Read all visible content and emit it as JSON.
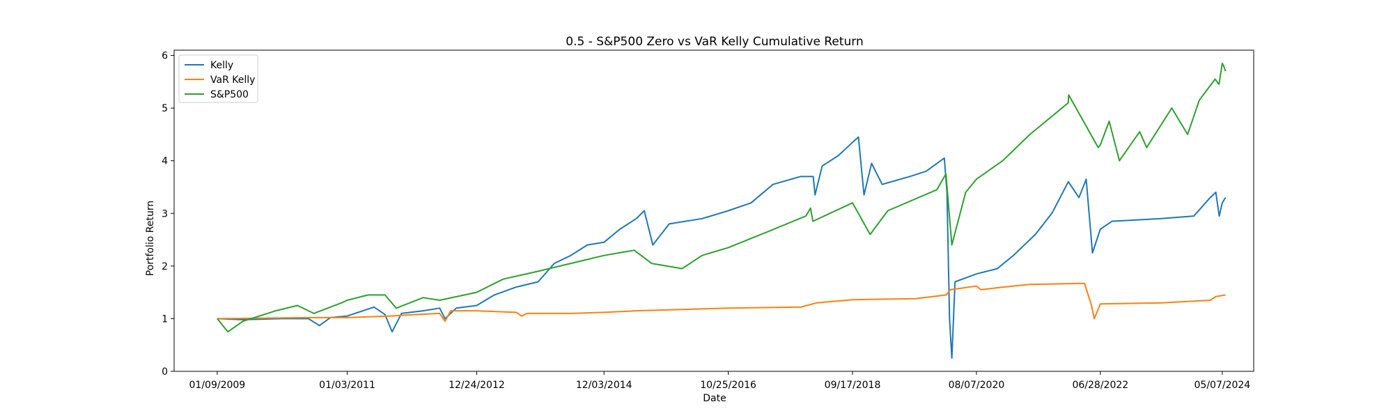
{
  "chart_data": {
    "type": "line",
    "title": "0.5 - S&P500 Zero vs VaR Kelly Cumulative Return",
    "xlabel": "Date",
    "ylabel": "Portfolio Return",
    "xticks": [
      "01/09/2009",
      "01/03/2011",
      "12/24/2012",
      "12/03/2014",
      "10/25/2016",
      "09/17/2018",
      "08/07/2020",
      "06/28/2022",
      "05/07/2024"
    ],
    "yticks": [
      0,
      1,
      2,
      3,
      4,
      5,
      6
    ],
    "xlim": [
      "2008-05-14",
      "2024-10-29"
    ],
    "ylim": [
      0,
      6.1
    ],
    "legend_position": "top-left",
    "grid": false,
    "series": [
      {
        "name": "Kelly",
        "color": "#1f77b4",
        "points": [
          [
            "2009-01-09",
            1.0
          ],
          [
            "2009-06-01",
            0.98
          ],
          [
            "2010-01-01",
            1.0
          ],
          [
            "2010-06-01",
            1.0
          ],
          [
            "2010-08-01",
            0.87
          ],
          [
            "2010-10-01",
            1.02
          ],
          [
            "2011-01-03",
            1.05
          ],
          [
            "2011-04-01",
            1.15
          ],
          [
            "2011-06-01",
            1.22
          ],
          [
            "2011-08-01",
            1.08
          ],
          [
            "2011-09-10",
            0.75
          ],
          [
            "2011-11-01",
            1.1
          ],
          [
            "2012-03-01",
            1.15
          ],
          [
            "2012-06-01",
            1.2
          ],
          [
            "2012-07-01",
            1.0
          ],
          [
            "2012-09-01",
            1.2
          ],
          [
            "2012-12-24",
            1.25
          ],
          [
            "2013-04-01",
            1.45
          ],
          [
            "2013-08-01",
            1.6
          ],
          [
            "2013-12-01",
            1.7
          ],
          [
            "2014-03-01",
            2.05
          ],
          [
            "2014-06-01",
            2.2
          ],
          [
            "2014-09-01",
            2.4
          ],
          [
            "2014-12-03",
            2.45
          ],
          [
            "2015-03-01",
            2.7
          ],
          [
            "2015-06-01",
            2.9
          ],
          [
            "2015-07-15",
            3.05
          ],
          [
            "2015-09-01",
            2.4
          ],
          [
            "2015-12-01",
            2.8
          ],
          [
            "2016-06-01",
            2.9
          ],
          [
            "2016-10-25",
            3.05
          ],
          [
            "2017-03-01",
            3.2
          ],
          [
            "2017-07-01",
            3.55
          ],
          [
            "2017-12-01",
            3.7
          ],
          [
            "2018-02-10",
            3.7
          ],
          [
            "2018-02-20",
            3.35
          ],
          [
            "2018-04-01",
            3.9
          ],
          [
            "2018-07-01",
            4.1
          ],
          [
            "2018-09-17",
            4.35
          ],
          [
            "2018-10-20",
            4.45
          ],
          [
            "2018-11-20",
            3.35
          ],
          [
            "2019-01-01",
            3.95
          ],
          [
            "2019-03-01",
            3.55
          ],
          [
            "2019-08-01",
            3.7
          ],
          [
            "2019-11-01",
            3.8
          ],
          [
            "2020-02-10",
            4.05
          ],
          [
            "2020-02-25",
            3.4
          ],
          [
            "2020-03-10",
            1.0
          ],
          [
            "2020-03-23",
            0.25
          ],
          [
            "2020-04-10",
            1.7
          ],
          [
            "2020-08-07",
            1.85
          ],
          [
            "2020-12-01",
            1.95
          ],
          [
            "2021-03-01",
            2.2
          ],
          [
            "2021-07-01",
            2.6
          ],
          [
            "2021-10-01",
            3.0
          ],
          [
            "2022-01-01",
            3.6
          ],
          [
            "2022-03-01",
            3.3
          ],
          [
            "2022-04-10",
            3.65
          ],
          [
            "2022-05-15",
            2.25
          ],
          [
            "2022-06-28",
            2.7
          ],
          [
            "2022-09-01",
            2.85
          ],
          [
            "2023-06-01",
            2.9
          ],
          [
            "2023-12-01",
            2.95
          ],
          [
            "2024-03-01",
            3.3
          ],
          [
            "2024-04-01",
            3.4
          ],
          [
            "2024-04-20",
            2.95
          ],
          [
            "2024-05-07",
            3.2
          ],
          [
            "2024-05-25",
            3.3
          ]
        ]
      },
      {
        "name": "VaR Kelly",
        "color": "#ff7f0e",
        "points": [
          [
            "2009-01-09",
            1.0
          ],
          [
            "2010-06-01",
            1.02
          ],
          [
            "2011-01-03",
            1.02
          ],
          [
            "2011-09-01",
            1.05
          ],
          [
            "2012-02-01",
            1.08
          ],
          [
            "2012-06-01",
            1.1
          ],
          [
            "2012-07-01",
            0.95
          ],
          [
            "2012-08-01",
            1.15
          ],
          [
            "2012-12-24",
            1.15
          ],
          [
            "2013-08-01",
            1.12
          ],
          [
            "2013-09-01",
            1.05
          ],
          [
            "2013-10-01",
            1.1
          ],
          [
            "2014-06-01",
            1.1
          ],
          [
            "2014-12-03",
            1.12
          ],
          [
            "2015-06-01",
            1.15
          ],
          [
            "2016-10-25",
            1.2
          ],
          [
            "2017-12-01",
            1.22
          ],
          [
            "2018-03-01",
            1.3
          ],
          [
            "2018-09-17",
            1.36
          ],
          [
            "2019-09-01",
            1.38
          ],
          [
            "2020-02-20",
            1.45
          ],
          [
            "2020-03-15",
            1.55
          ],
          [
            "2020-08-07",
            1.62
          ],
          [
            "2020-09-01",
            1.55
          ],
          [
            "2021-01-01",
            1.6
          ],
          [
            "2021-06-01",
            1.65
          ],
          [
            "2022-04-01",
            1.67
          ],
          [
            "2022-05-10",
            1.25
          ],
          [
            "2022-05-25",
            1.0
          ],
          [
            "2022-06-28",
            1.28
          ],
          [
            "2023-06-01",
            1.3
          ],
          [
            "2024-03-01",
            1.35
          ],
          [
            "2024-04-01",
            1.42
          ],
          [
            "2024-05-25",
            1.45
          ]
        ]
      },
      {
        "name": "S&P500",
        "color": "#2ca02c",
        "points": [
          [
            "2009-01-09",
            1.0
          ],
          [
            "2009-03-09",
            0.75
          ],
          [
            "2009-06-01",
            0.95
          ],
          [
            "2009-12-01",
            1.15
          ],
          [
            "2010-04-01",
            1.25
          ],
          [
            "2010-07-01",
            1.1
          ],
          [
            "2010-12-01",
            1.3
          ],
          [
            "2011-01-03",
            1.35
          ],
          [
            "2011-04-29",
            1.45
          ],
          [
            "2011-08-01",
            1.45
          ],
          [
            "2011-10-03",
            1.2
          ],
          [
            "2012-03-01",
            1.4
          ],
          [
            "2012-06-01",
            1.35
          ],
          [
            "2012-12-24",
            1.5
          ],
          [
            "2013-05-20",
            1.75
          ],
          [
            "2013-12-01",
            1.9
          ],
          [
            "2014-06-01",
            2.05
          ],
          [
            "2014-12-03",
            2.2
          ],
          [
            "2015-05-20",
            2.3
          ],
          [
            "2015-08-25",
            2.05
          ],
          [
            "2016-02-11",
            1.95
          ],
          [
            "2016-06-01",
            2.2
          ],
          [
            "2016-10-25",
            2.35
          ],
          [
            "2017-06-01",
            2.65
          ],
          [
            "2017-12-31",
            2.95
          ],
          [
            "2018-01-26",
            3.1
          ],
          [
            "2018-02-08",
            2.85
          ],
          [
            "2018-09-17",
            3.2
          ],
          [
            "2018-12-24",
            2.6
          ],
          [
            "2019-04-01",
            3.05
          ],
          [
            "2019-12-31",
            3.45
          ],
          [
            "2020-02-19",
            3.75
          ],
          [
            "2020-03-23",
            2.4
          ],
          [
            "2020-06-08",
            3.4
          ],
          [
            "2020-08-07",
            3.65
          ],
          [
            "2020-12-31",
            4.0
          ],
          [
            "2021-06-01",
            4.5
          ],
          [
            "2021-12-31",
            5.1
          ],
          [
            "2022-01-03",
            5.25
          ],
          [
            "2022-06-16",
            4.25
          ],
          [
            "2022-06-28",
            4.3
          ],
          [
            "2022-08-16",
            4.75
          ],
          [
            "2022-10-12",
            4.0
          ],
          [
            "2023-02-02",
            4.55
          ],
          [
            "2023-03-13",
            4.25
          ],
          [
            "2023-07-31",
            5.0
          ],
          [
            "2023-10-27",
            4.5
          ],
          [
            "2023-12-31",
            5.15
          ],
          [
            "2024-03-28",
            5.55
          ],
          [
            "2024-04-19",
            5.45
          ],
          [
            "2024-05-07",
            5.85
          ],
          [
            "2024-05-15",
            5.8
          ],
          [
            "2024-05-25",
            5.7
          ]
        ]
      }
    ]
  }
}
